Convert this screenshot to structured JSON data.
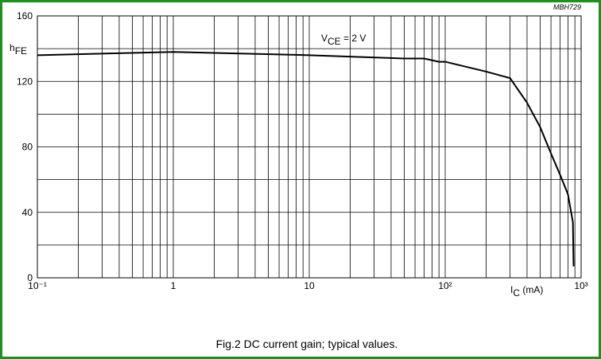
{
  "chart_data": {
    "type": "line",
    "code": "MBH729",
    "y_label": {
      "main": "h",
      "sub": "FE"
    },
    "x_label": {
      "main": "I",
      "sub": "C",
      "unit": " (mA)"
    },
    "annotation": {
      "main": "V",
      "sub": "CE",
      "rest": " = 2 V"
    },
    "caption": "Fig.2  DC current gain; typical values.",
    "log_x": true,
    "grid": true,
    "color": "#000000",
    "x": [
      0.1,
      1,
      10,
      50,
      70,
      90,
      100,
      200,
      300,
      400,
      500,
      600,
      700,
      800,
      870,
      880
    ],
    "series": [
      {
        "name": "hFE",
        "color": "#000000",
        "values": [
          136,
          138,
          136,
          134,
          134,
          132,
          132,
          126,
          122,
          107,
          92,
          76,
          63,
          51,
          34,
          7
        ]
      }
    ],
    "xlim": [
      0.1,
      1000
    ],
    "xticks": [
      {
        "value": 0.1,
        "label": "10⁻¹"
      },
      1,
      10,
      {
        "value": 100,
        "label": "10²"
      },
      {
        "value": 1000,
        "label": "10³"
      }
    ],
    "ylim": [
      0,
      160
    ],
    "yticks": [
      0,
      40,
      80,
      120,
      160
    ]
  }
}
